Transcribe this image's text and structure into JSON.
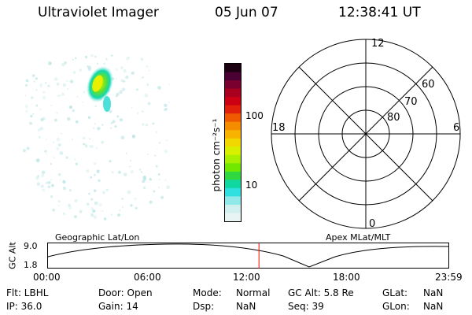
{
  "header": {
    "instrument": "Ultraviolet Imager",
    "date": "05 Jun 07",
    "time": "12:38:41 UT"
  },
  "colorbar": {
    "label": "photon cm⁻²s⁻¹",
    "ticks": [
      "100",
      "10"
    ],
    "colors": [
      "#1a0010",
      "#4b0033",
      "#7a0030",
      "#a8001e",
      "#cc0012",
      "#e0200a",
      "#ef5a00",
      "#f58c00",
      "#f8b200",
      "#f0d800",
      "#d8f000",
      "#a8f000",
      "#70e800",
      "#30d840",
      "#10d8a0",
      "#30e0e0",
      "#90e8e8",
      "#d0f0f0",
      "#e8f4f4"
    ]
  },
  "polar_plot": {
    "mlt_labels": {
      "top": "12",
      "bottom": "0",
      "left": "18",
      "right": "6"
    },
    "lat_labels": [
      "60",
      "70",
      "80"
    ]
  },
  "orbit_panel": {
    "y_axis_label": "GC Alt",
    "y_max": "9.0",
    "y_min": "1.8",
    "left_title": "Geographic Lat/Lon",
    "right_title": "Apex MLat/MLT",
    "time_ticks": [
      "00:00",
      "06:00",
      "12:00",
      "18:00",
      "23:59"
    ],
    "current_time_hours": 12.645
  },
  "info": {
    "col1": [
      "Flt: LBHL",
      "IP: 36.0"
    ],
    "col2": [
      "Door: Open",
      "Gain: 14"
    ],
    "col3_labels": [
      "Mode:",
      "Dsp:"
    ],
    "col3_values": [
      "Normal",
      "NaN"
    ],
    "col4": [
      "GC Alt: 5.8 Re",
      "Seq: 39"
    ],
    "col5_labels": [
      "GLat:",
      "GLon:"
    ],
    "col5_values": [
      "NaN",
      "NaN"
    ]
  }
}
